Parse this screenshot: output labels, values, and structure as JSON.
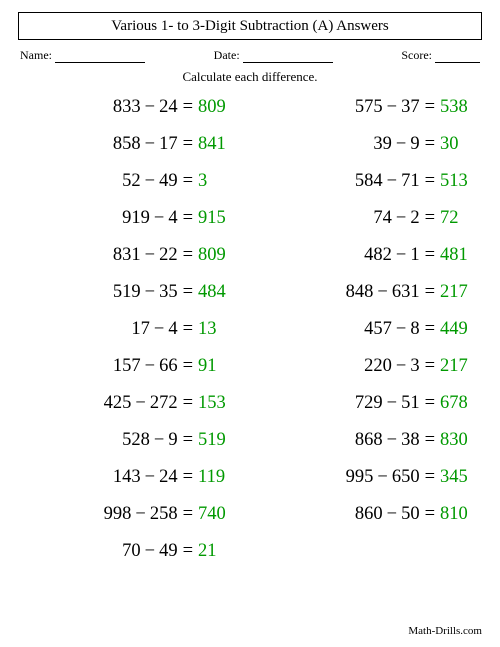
{
  "title": "Various 1- to 3-Digit Subtraction (A) Answers",
  "meta": {
    "name_label": "Name:",
    "date_label": "Date:",
    "score_label": "Score:",
    "name_width": 90,
    "date_width": 90,
    "score_width": 45
  },
  "instruction": "Calculate each difference.",
  "answer_color": "#009900",
  "text_color": "#000000",
  "background": "#ffffff",
  "font_size_problem": 18.5,
  "columns": [
    [
      {
        "a": 833,
        "b": 24,
        "ans": 809
      },
      {
        "a": 858,
        "b": 17,
        "ans": 841
      },
      {
        "a": 52,
        "b": 49,
        "ans": 3
      },
      {
        "a": 919,
        "b": 4,
        "ans": 915
      },
      {
        "a": 831,
        "b": 22,
        "ans": 809
      },
      {
        "a": 519,
        "b": 35,
        "ans": 484
      },
      {
        "a": 17,
        "b": 4,
        "ans": 13
      },
      {
        "a": 157,
        "b": 66,
        "ans": 91
      },
      {
        "a": 425,
        "b": 272,
        "ans": 153
      },
      {
        "a": 528,
        "b": 9,
        "ans": 519
      },
      {
        "a": 143,
        "b": 24,
        "ans": 119
      },
      {
        "a": 998,
        "b": 258,
        "ans": 740
      },
      {
        "a": 70,
        "b": 49,
        "ans": 21
      }
    ],
    [
      {
        "a": 575,
        "b": 37,
        "ans": 538
      },
      {
        "a": 39,
        "b": 9,
        "ans": 30
      },
      {
        "a": 584,
        "b": 71,
        "ans": 513
      },
      {
        "a": 74,
        "b": 2,
        "ans": 72
      },
      {
        "a": 482,
        "b": 1,
        "ans": 481
      },
      {
        "a": 848,
        "b": 631,
        "ans": 217
      },
      {
        "a": 457,
        "b": 8,
        "ans": 449
      },
      {
        "a": 220,
        "b": 3,
        "ans": 217
      },
      {
        "a": 729,
        "b": 51,
        "ans": 678
      },
      {
        "a": 868,
        "b": 38,
        "ans": 830
      },
      {
        "a": 995,
        "b": 650,
        "ans": 345
      },
      {
        "a": 860,
        "b": 50,
        "ans": 810
      }
    ]
  ],
  "footer": "Math-Drills.com"
}
